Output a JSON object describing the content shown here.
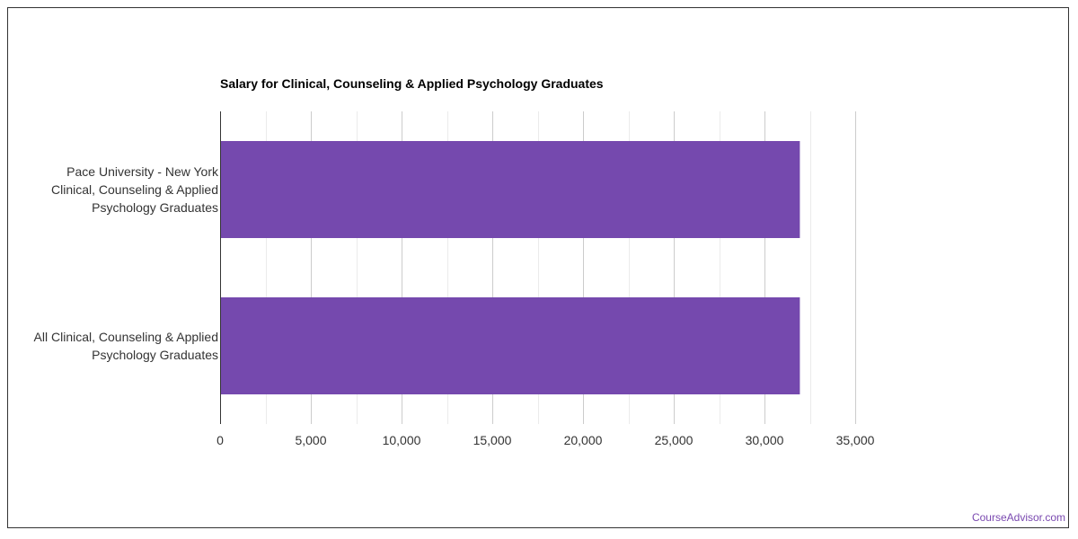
{
  "chart_data": {
    "type": "bar",
    "orientation": "horizontal",
    "title": "Salary for Clinical, Counseling & Applied Psychology Graduates",
    "categories": [
      "Pace University - New York\nClinical, Counseling & Applied\nPsychology Graduates",
      "All Clinical, Counseling & Applied\nPsychology Graduates"
    ],
    "values": [
      31950,
      31950
    ],
    "xlim": [
      0,
      35000
    ],
    "xticks": [
      "0",
      "5,000",
      "10,000",
      "15,000",
      "20,000",
      "25,000",
      "30,000",
      "35,000"
    ],
    "xtick_values": [
      0,
      5000,
      10000,
      15000,
      20000,
      25000,
      30000,
      35000
    ],
    "grid": true,
    "bar_color": "#7549ae"
  },
  "branding": {
    "watermark": "CourseAdvisor.com"
  }
}
